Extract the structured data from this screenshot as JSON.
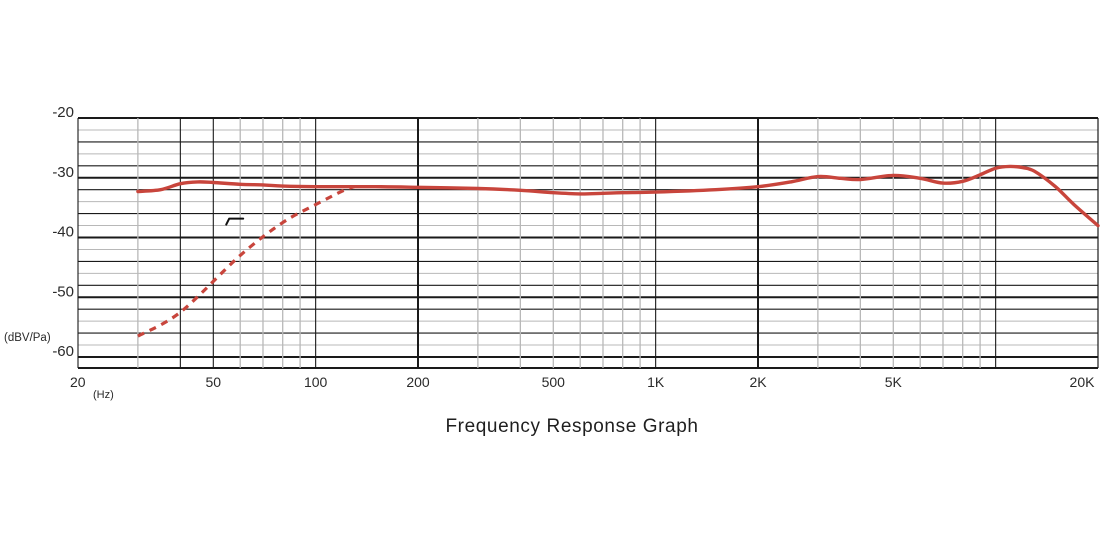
{
  "chart_data": {
    "type": "line",
    "title": "Frequency Response Graph",
    "xlabel": "(Hz)",
    "ylabel": "(dBV/Pa)",
    "x_scale": "log",
    "xlim": [
      20,
      20000
    ],
    "ylim": [
      -62,
      -18
    ],
    "x_ticks": [
      {
        "value": 20,
        "label": "20"
      },
      {
        "value": 50,
        "label": "50"
      },
      {
        "value": 100,
        "label": "100"
      },
      {
        "value": 200,
        "label": "200"
      },
      {
        "value": 500,
        "label": "500"
      },
      {
        "value": 1000,
        "label": "1K"
      },
      {
        "value": 2000,
        "label": "2K"
      },
      {
        "value": 5000,
        "label": "5K"
      },
      {
        "value": 20000,
        "label": "20K"
      }
    ],
    "y_ticks": [
      {
        "value": -20,
        "label": "-20"
      },
      {
        "value": -30,
        "label": "-30"
      },
      {
        "value": -40,
        "label": "-40"
      },
      {
        "value": -50,
        "label": "-50"
      },
      {
        "value": -60,
        "label": "-60"
      }
    ],
    "grid": true,
    "legend": "none",
    "colors": {
      "series": "#c8453c",
      "grid": "#1a1a1a",
      "grid_minor": "#b8b8b8"
    },
    "series": [
      {
        "style": "solid",
        "points": [
          [
            30,
            -32.3
          ],
          [
            35,
            -32.0
          ],
          [
            40,
            -31.0
          ],
          [
            45,
            -30.7
          ],
          [
            50,
            -30.8
          ],
          [
            60,
            -31.1
          ],
          [
            70,
            -31.2
          ],
          [
            80,
            -31.4
          ],
          [
            100,
            -31.5
          ],
          [
            150,
            -31.5
          ],
          [
            200,
            -31.6
          ],
          [
            300,
            -31.8
          ],
          [
            400,
            -32.1
          ],
          [
            500,
            -32.5
          ],
          [
            600,
            -32.7
          ],
          [
            700,
            -32.6
          ],
          [
            800,
            -32.5
          ],
          [
            1000,
            -32.4
          ],
          [
            1500,
            -32.0
          ],
          [
            2000,
            -31.5
          ],
          [
            2500,
            -30.7
          ],
          [
            3000,
            -29.8
          ],
          [
            3500,
            -30.1
          ],
          [
            4000,
            -30.3
          ],
          [
            5000,
            -29.6
          ],
          [
            6000,
            -30.1
          ],
          [
            7000,
            -30.9
          ],
          [
            8000,
            -30.6
          ],
          [
            9000,
            -29.5
          ],
          [
            10000,
            -28.4
          ],
          [
            11000,
            -28.1
          ],
          [
            12000,
            -28.3
          ],
          [
            13000,
            -28.9
          ],
          [
            15000,
            -31.5
          ],
          [
            17000,
            -34.5
          ],
          [
            20000,
            -38.0
          ]
        ]
      },
      {
        "style": "dashed",
        "points": [
          [
            30,
            -56.5
          ],
          [
            40,
            -52.5
          ],
          [
            60,
            -43.0
          ],
          [
            80,
            -37.5
          ],
          [
            100,
            -34.5
          ],
          [
            120,
            -32.2
          ],
          [
            130,
            -31.5
          ]
        ]
      }
    ],
    "annotations": [
      {
        "type": "high-pass-filter-symbol",
        "x": 58,
        "y": -37
      }
    ]
  }
}
